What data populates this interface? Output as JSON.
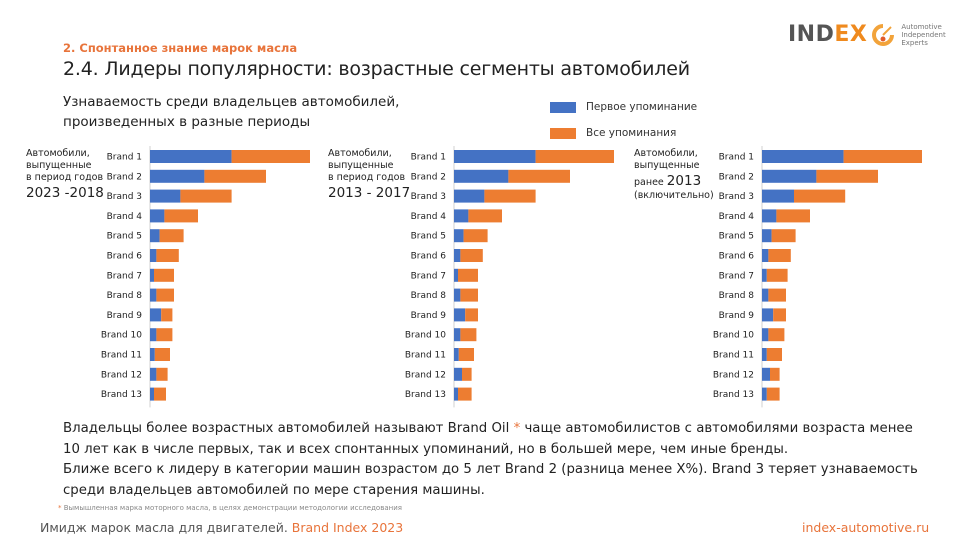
{
  "header": {
    "section_label": "2. Спонтанное знание марок масла",
    "title": "2.4. Лидеры популярности: возрастные сегменты автомобилей",
    "subtitle_line1": "Узнаваемость среди владельцев автомобилей,",
    "subtitle_line2": "произведенных в разные периоды"
  },
  "logo": {
    "word_main": "IND",
    "word_accent": "EX",
    "tagline_line1": "Automotive",
    "tagline_line2": "Independent",
    "tagline_line3": "Experts"
  },
  "legend": {
    "items": [
      {
        "label": "Первое упоминание",
        "color": "#4472c4"
      },
      {
        "label": "Все упоминания",
        "color": "#ed7d31"
      }
    ]
  },
  "chart_data": [
    {
      "type": "bar",
      "orientation": "horizontal",
      "stacked": true,
      "caption_line1": "Автомобили,",
      "caption_line2": "выпущенные",
      "caption_line3": "в период годов",
      "caption_big": "2023 -2018",
      "categories": [
        "Brand 1",
        "Brand 2",
        "Brand 3",
        "Brand 4",
        "Brand 5",
        "Brand 6",
        "Brand 7",
        "Brand 8",
        "Brand 9",
        "Brand 10",
        "Brand 11",
        "Brand 12",
        "Brand 13"
      ],
      "series": [
        {
          "name": "Первое упоминание",
          "values": [
            51,
            34,
            19,
            9,
            6,
            4,
            2.5,
            4,
            7,
            4,
            3,
            4,
            2.5
          ]
        },
        {
          "name": "Все упоминания",
          "values": [
            100,
            72.5,
            51,
            30,
            21,
            18,
            15,
            15,
            14,
            14,
            12.5,
            11,
            10
          ]
        }
      ],
      "xlim": [
        0,
        100
      ],
      "grid": false,
      "units": "relative (Brand 1 all mentions = 100)"
    },
    {
      "type": "bar",
      "orientation": "horizontal",
      "stacked": true,
      "caption_line1": "Автомобили,",
      "caption_line2": "выпущенные",
      "caption_line3": "в период годов",
      "caption_big": "2013 - 2017",
      "categories": [
        "Brand 1",
        "Brand 2",
        "Brand 3",
        "Brand 4",
        "Brand 5",
        "Brand 6",
        "Brand 7",
        "Brand 8",
        "Brand 9",
        "Brand 10",
        "Brand 11",
        "Brand 12",
        "Brand 13"
      ],
      "series": [
        {
          "name": "Первое упоминание",
          "values": [
            51,
            34,
            19,
            9,
            6,
            4,
            2.5,
            4,
            7,
            4,
            3,
            5,
            2.5
          ]
        },
        {
          "name": "Все упоминания",
          "values": [
            100,
            72.5,
            51,
            30,
            21,
            18,
            15,
            15,
            15,
            14,
            12.5,
            11,
            11
          ]
        }
      ],
      "xlim": [
        0,
        100
      ],
      "grid": false,
      "units": "relative (Brand 1 all mentions = 100)"
    },
    {
      "type": "bar",
      "orientation": "horizontal",
      "stacked": true,
      "caption_line1": "Автомобили,",
      "caption_line2": "выпущенные",
      "caption_line3_prefix": "ранее",
      "caption_big": "2013",
      "caption_line4": "(включительно)",
      "categories": [
        "Brand 1",
        "Brand 2",
        "Brand 3",
        "Brand 4",
        "Brand 5",
        "Brand 6",
        "Brand 7",
        "Brand 8",
        "Brand 9",
        "Brand 10",
        "Brand 11",
        "Brand 12",
        "Brand 13"
      ],
      "series": [
        {
          "name": "Первое упоминание",
          "values": [
            51,
            34,
            20,
            9,
            6,
            4,
            3,
            4,
            7,
            4,
            3,
            5,
            3
          ]
        },
        {
          "name": "Все упоминания",
          "values": [
            100,
            72.5,
            52,
            30,
            21,
            18,
            16,
            15,
            15,
            14,
            12.5,
            11,
            11
          ]
        }
      ],
      "xlim": [
        0,
        100
      ],
      "grid": false,
      "units": "relative (Brand 1 all mentions = 100)"
    }
  ],
  "body": {
    "p1_before": "Владельцы более возрастных автомобилей называют Brand Oil ",
    "p1_asterisk": "*",
    "p1_after": " чаще автомобилистов с автомобилями возраста менее 10 лет как в числе первых, так и всех спонтанных упоминаний, но в большей мере, чем иные бренды.",
    "p2": "Ближе всего к лидеру в категории машин возрастом до 5 лет Brand 2 (разница менее X%). Brand 3 теряет узнаваемость среди владельцев автомобилей по мере старения машины."
  },
  "footnote": {
    "asterisk": "*",
    "text": " Вымышленная марка моторного масла, в целях демонстрации методологии исследования"
  },
  "footer": {
    "left_text": "Имидж марок масла для двигателей. ",
    "left_accent": "Brand Index 2023",
    "right_text": "index-automotive.ru"
  }
}
